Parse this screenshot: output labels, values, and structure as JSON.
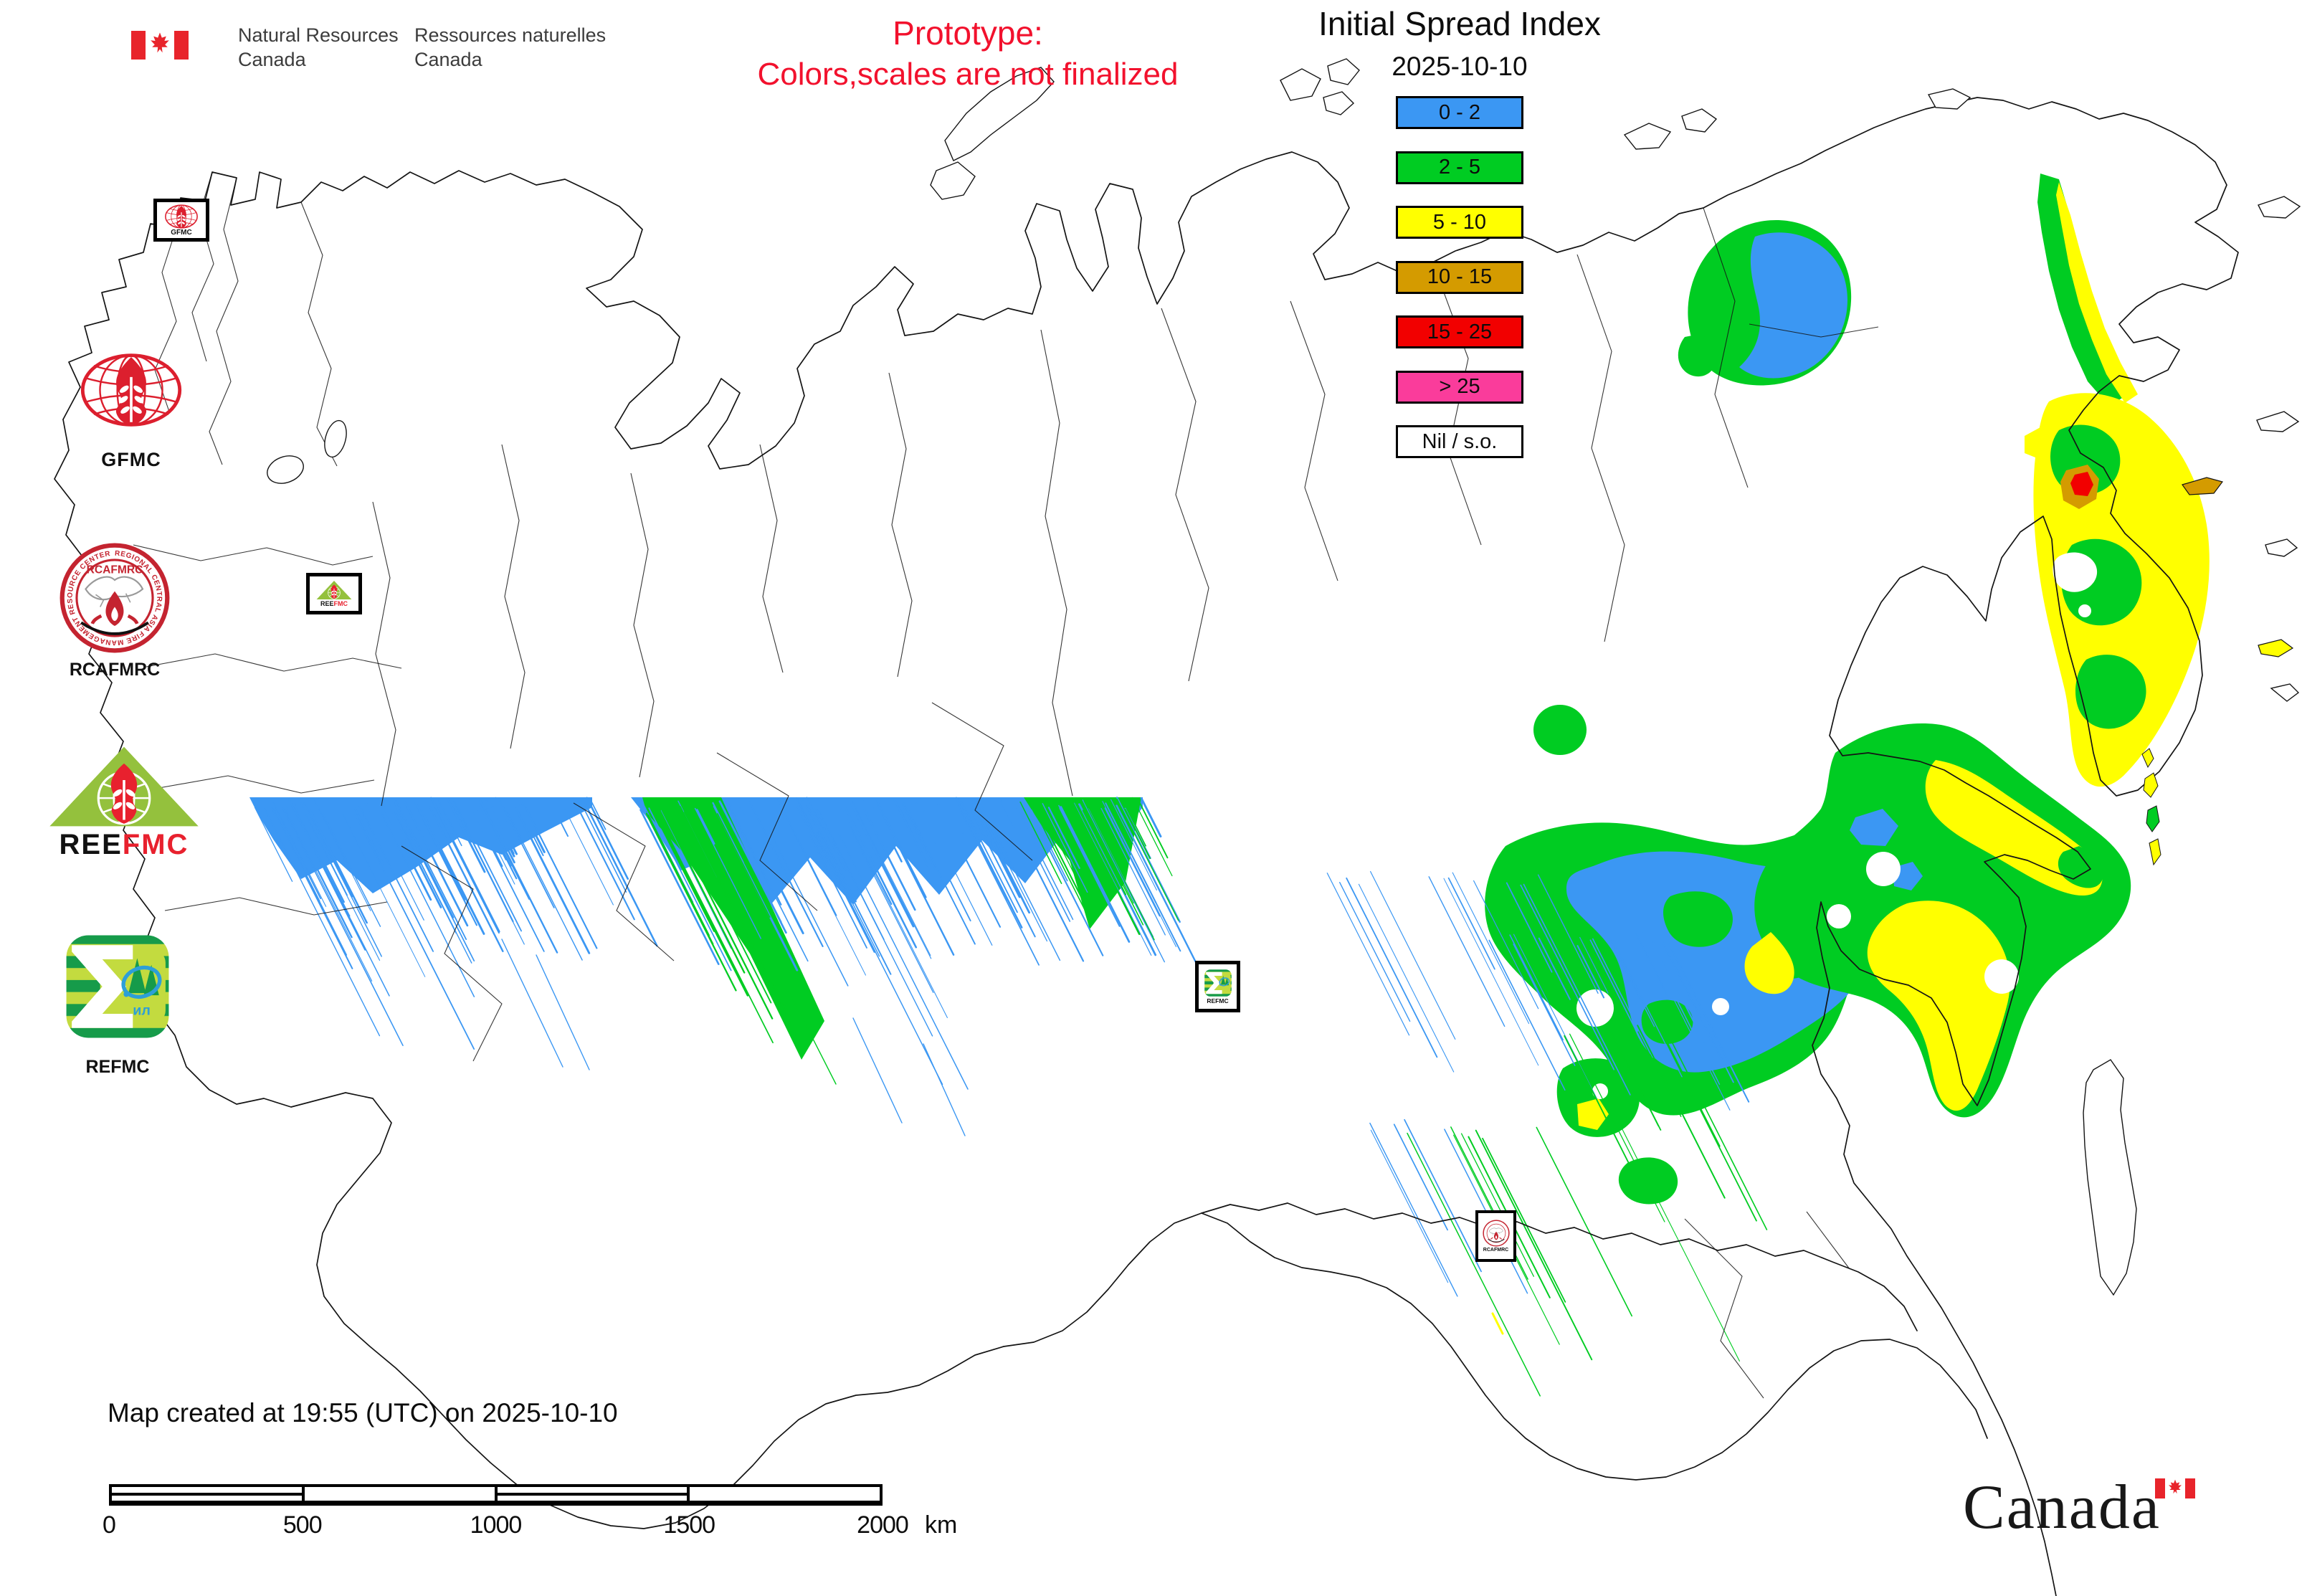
{
  "colors": {
    "prototype_red": "#F2112D",
    "outline": "#141414",
    "flag_red": "#E8242B",
    "gfmc_red": "#DC1F2E",
    "rcafmrc_red": "#C42430",
    "reefmc_green": "#94C13D",
    "refmc_green": "#169B4A",
    "refmc_lime": "#C3DB3F",
    "refmc_blue": "#2D9FD8"
  },
  "header": {
    "nrcan": {
      "en_line1": "Natural Resources",
      "en_line2": "Canada",
      "fr_line1": "Ressources naturelles",
      "fr_line2": "Canada"
    },
    "prototype_line1": "Prototype:",
    "prototype_line2": "Colors,scales are not finalized",
    "title": "Initial Spread Index",
    "date": "2025-10-10"
  },
  "legend": {
    "entries": [
      {
        "label": "0 - 2",
        "color": "#3B97F3"
      },
      {
        "label": "2 - 5",
        "color": "#00CC22"
      },
      {
        "label": "5 - 10",
        "color": "#FFFF00"
      },
      {
        "label": "10 - 15",
        "color": "#D49B00"
      },
      {
        "label": "15 - 25",
        "color": "#F20000"
      },
      {
        "label": "> 25",
        "color": "#FA3C9B"
      },
      {
        "label": "Nil / s.o.",
        "color": "#FFFFFF"
      }
    ]
  },
  "logos": {
    "gfmc": {
      "label": "GFMC"
    },
    "rcafmrc": {
      "label": "RCAFMRC",
      "ring_text": "REGIONAL CENTRAL ASIA FIRE MANAGEMENT RESOURCE CENTER",
      "inner_label": "RCAFMRC"
    },
    "reefmc": {
      "word_black": "REE",
      "word_red": "FMC"
    },
    "refmc": {
      "label": "REFMC",
      "inner_label": "ил"
    }
  },
  "markers": {
    "gfmc": "GFMC",
    "reefmc_black": "REE",
    "reefmc_red": "FMC",
    "refmc": "REFMC",
    "rcafmrc": "RCAFMRC"
  },
  "footer": {
    "created": "Map created at 19:55 (UTC) on 2025-10-10",
    "scalebar": {
      "ticks": [
        "0",
        "500",
        "1000",
        "1500",
        "2000"
      ],
      "unit": "km"
    },
    "wordmark": "Canada"
  }
}
